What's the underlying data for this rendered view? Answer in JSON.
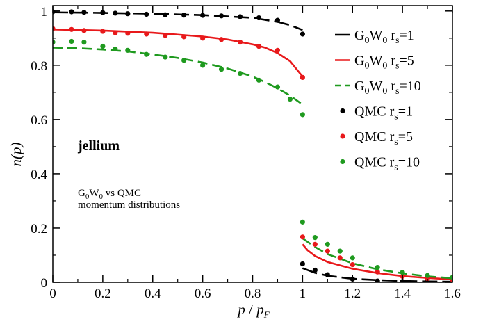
{
  "chart_data": {
    "type": "line",
    "xlabel": {
      "main": "p",
      "slash": " / ",
      "main2": "p",
      "sub": "F"
    },
    "ylabel": "n(p)",
    "xlim": [
      0,
      1.6
    ],
    "ylim": [
      0,
      1.02
    ],
    "x_ticks": [
      0,
      0.2,
      0.4,
      0.6,
      0.8,
      1,
      1.2,
      1.4,
      1.6
    ],
    "x_tick_labels": [
      "0",
      "0.2",
      "0.4",
      "0.6",
      "0.8",
      "1",
      "1.2",
      "1.4",
      "1.6"
    ],
    "y_ticks": [
      0,
      0.2,
      0.4,
      0.6,
      0.8,
      1
    ],
    "y_tick_labels": [
      "0",
      "0.2",
      "0.4",
      "0.6",
      "0.8",
      "1"
    ],
    "grid": false,
    "legend_position": "top-right",
    "annotations": {
      "system": "jellium",
      "caption_line1_parts": [
        "G",
        "0",
        "W",
        "0",
        " vs QMC"
      ],
      "caption_line2": "momentum distributions"
    },
    "series": [
      {
        "kind": "line",
        "style": "long-dash",
        "color": "#000000",
        "legend": [
          "G",
          "0",
          "W",
          "0",
          " r",
          "s",
          "=1"
        ],
        "x": [
          0,
          0.2,
          0.4,
          0.6,
          0.8,
          0.9,
          0.95,
          1.0
        ],
        "y": [
          0.995,
          0.993,
          0.99,
          0.985,
          0.975,
          0.96,
          0.948,
          0.93
        ],
        "x2": [
          1.0,
          1.05,
          1.1,
          1.2,
          1.3,
          1.4,
          1.5,
          1.6
        ],
        "y2": [
          0.052,
          0.035,
          0.024,
          0.013,
          0.008,
          0.005,
          0.003,
          0.002
        ]
      },
      {
        "kind": "line",
        "style": "solid",
        "color": "#e8191b",
        "legend": [
          "G",
          "0",
          "W",
          "0",
          " r",
          "s",
          "=5"
        ],
        "x": [
          0,
          0.2,
          0.4,
          0.6,
          0.7,
          0.8,
          0.85,
          0.9,
          0.95,
          1.0
        ],
        "y": [
          0.932,
          0.928,
          0.92,
          0.906,
          0.895,
          0.877,
          0.865,
          0.845,
          0.815,
          0.758
        ],
        "x2": [
          1.0,
          1.02,
          1.05,
          1.1,
          1.2,
          1.3,
          1.4,
          1.5,
          1.6
        ],
        "y2": [
          0.14,
          0.118,
          0.097,
          0.075,
          0.05,
          0.034,
          0.023,
          0.016,
          0.011
        ]
      },
      {
        "kind": "line",
        "style": "dash",
        "color": "#1f9a1f",
        "legend": [
          "G",
          "0",
          "W",
          "0",
          " r",
          "s",
          "=10"
        ],
        "x": [
          0,
          0.1,
          0.2,
          0.3,
          0.4,
          0.5,
          0.6,
          0.7,
          0.8,
          0.85,
          0.9,
          0.95,
          1.0
        ],
        "y": [
          0.865,
          0.863,
          0.858,
          0.851,
          0.84,
          0.827,
          0.81,
          0.788,
          0.758,
          0.738,
          0.715,
          0.688,
          0.655
        ],
        "x2": [
          1.0,
          1.05,
          1.1,
          1.2,
          1.3,
          1.4,
          1.5,
          1.6
        ],
        "y2": [
          0.162,
          0.13,
          0.104,
          0.07,
          0.048,
          0.033,
          0.022,
          0.015
        ]
      },
      {
        "kind": "points",
        "color": "#000000",
        "legend": [
          "QMC r",
          "s",
          "=1"
        ],
        "x": [
          0,
          0.075,
          0.125,
          0.2,
          0.25,
          0.3,
          0.375,
          0.45,
          0.525,
          0.6,
          0.675,
          0.75,
          0.825,
          0.9,
          1.0,
          1.0,
          1.05,
          1.1,
          1.2,
          1.3,
          1.4,
          1.5
        ],
        "y": [
          0.997,
          0.997,
          0.995,
          0.994,
          0.992,
          0.99,
          0.988,
          0.986,
          0.985,
          0.984,
          0.982,
          0.979,
          0.975,
          0.966,
          0.915,
          0.068,
          0.045,
          0.028,
          0.012,
          0.005,
          0.003,
          0.002
        ]
      },
      {
        "kind": "points",
        "color": "#e8191b",
        "legend": [
          "QMC r",
          "s",
          "=5"
        ],
        "x": [
          0,
          0.075,
          0.125,
          0.2,
          0.25,
          0.3,
          0.375,
          0.45,
          0.525,
          0.6,
          0.675,
          0.75,
          0.825,
          0.9,
          1.0,
          1.0,
          1.05,
          1.1,
          1.15,
          1.2,
          1.3,
          1.4,
          1.5,
          1.6
        ],
        "y": [
          0.935,
          0.932,
          0.928,
          0.925,
          0.92,
          0.918,
          0.915,
          0.91,
          0.905,
          0.9,
          0.895,
          0.885,
          0.87,
          0.855,
          0.755,
          0.167,
          0.14,
          0.115,
          0.09,
          0.065,
          0.038,
          0.022,
          0.014,
          0.01
        ]
      },
      {
        "kind": "points",
        "color": "#1f9a1f",
        "legend": [
          "QMC r",
          "s",
          "=10"
        ],
        "x": [
          0,
          0.075,
          0.125,
          0.2,
          0.25,
          0.3,
          0.375,
          0.45,
          0.525,
          0.6,
          0.675,
          0.75,
          0.825,
          0.9,
          0.95,
          1.0,
          1.0,
          1.05,
          1.1,
          1.15,
          1.2,
          1.3,
          1.4,
          1.5,
          1.6
        ],
        "y": [
          0.885,
          0.888,
          0.885,
          0.87,
          0.86,
          0.855,
          0.84,
          0.83,
          0.818,
          0.8,
          0.785,
          0.77,
          0.745,
          0.72,
          0.675,
          0.618,
          0.222,
          0.165,
          0.14,
          0.115,
          0.09,
          0.055,
          0.037,
          0.025,
          0.018
        ]
      }
    ]
  }
}
